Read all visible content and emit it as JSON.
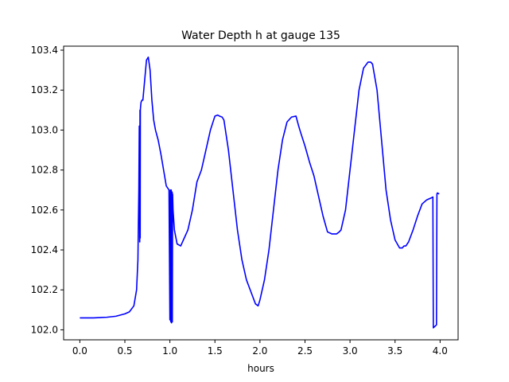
{
  "chart_data": {
    "type": "line",
    "title": "Water Depth h at gauge 135",
    "xlabel": "hours",
    "ylabel": "",
    "xlim": [
      -0.18,
      4.2
    ],
    "ylim": [
      101.95,
      103.42
    ],
    "xticks": [
      0.0,
      0.5,
      1.0,
      1.5,
      2.0,
      2.5,
      3.0,
      3.5,
      4.0
    ],
    "xtick_labels": [
      "0.0",
      "0.5",
      "1.0",
      "1.5",
      "2.0",
      "2.5",
      "3.0",
      "3.5",
      "4.0"
    ],
    "yticks": [
      102.0,
      102.2,
      102.4,
      102.6,
      102.8,
      103.0,
      103.2,
      103.4
    ],
    "ytick_labels": [
      "102.0",
      "102.2",
      "102.4",
      "102.6",
      "102.8",
      "103.0",
      "103.2",
      "103.4"
    ],
    "grid": false,
    "series": [
      {
        "color": "#0000ff",
        "x": [
          0.0,
          0.15,
          0.3,
          0.4,
          0.5,
          0.55,
          0.6,
          0.63,
          0.645,
          0.655,
          0.66,
          0.665,
          0.668,
          0.67,
          0.672,
          0.675,
          0.68,
          0.69,
          0.7,
          0.72,
          0.74,
          0.76,
          0.78,
          0.8,
          0.82,
          0.84,
          0.87,
          0.9,
          0.93,
          0.96,
          0.99,
          1.0,
          1.005,
          1.01,
          1.015,
          1.018,
          1.02,
          1.023,
          1.025,
          1.027,
          1.03,
          1.035,
          1.05,
          1.08,
          1.12,
          1.15,
          1.2,
          1.25,
          1.3,
          1.35,
          1.4,
          1.45,
          1.5,
          1.53,
          1.55,
          1.58,
          1.6,
          1.65,
          1.7,
          1.75,
          1.8,
          1.85,
          1.9,
          1.95,
          1.98,
          2.0,
          2.05,
          2.1,
          2.15,
          2.2,
          2.25,
          2.3,
          2.35,
          2.4,
          2.43,
          2.45,
          2.5,
          2.55,
          2.6,
          2.65,
          2.7,
          2.75,
          2.8,
          2.85,
          2.88,
          2.9,
          2.95,
          3.0,
          3.05,
          3.1,
          3.15,
          3.2,
          3.23,
          3.25,
          3.3,
          3.35,
          3.4,
          3.45,
          3.5,
          3.55,
          3.58,
          3.6,
          3.62,
          3.65,
          3.7,
          3.75,
          3.8,
          3.85,
          3.9,
          3.92,
          3.925,
          3.96,
          3.965,
          3.97,
          3.99
        ],
        "y": [
          102.06,
          102.06,
          102.063,
          102.068,
          102.08,
          102.09,
          102.12,
          102.2,
          102.35,
          102.7,
          103.02,
          102.44,
          103.1,
          102.46,
          103.1,
          103.12,
          103.14,
          103.15,
          103.15,
          103.25,
          103.35,
          103.365,
          103.3,
          103.15,
          103.05,
          103.0,
          102.95,
          102.88,
          102.8,
          102.72,
          102.7,
          102.05,
          102.7,
          102.04,
          102.7,
          102.035,
          102.69,
          102.04,
          102.69,
          102.04,
          102.68,
          102.6,
          102.5,
          102.43,
          102.42,
          102.45,
          102.5,
          102.6,
          102.74,
          102.8,
          102.9,
          103.0,
          103.07,
          103.075,
          103.07,
          103.065,
          103.05,
          102.9,
          102.7,
          102.5,
          102.35,
          102.25,
          102.19,
          102.13,
          102.12,
          102.15,
          102.25,
          102.4,
          102.6,
          102.8,
          102.95,
          103.04,
          103.065,
          103.07,
          103.02,
          102.99,
          102.92,
          102.84,
          102.77,
          102.67,
          102.57,
          102.49,
          102.48,
          102.48,
          102.49,
          102.5,
          102.6,
          102.8,
          103.0,
          103.2,
          103.31,
          103.34,
          103.34,
          103.33,
          103.2,
          102.95,
          102.7,
          102.55,
          102.45,
          102.41,
          102.41,
          102.42,
          102.42,
          102.44,
          102.5,
          102.57,
          102.63,
          102.65,
          102.66,
          102.665,
          102.01,
          102.025,
          102.68,
          102.685,
          102.68
        ]
      }
    ]
  }
}
